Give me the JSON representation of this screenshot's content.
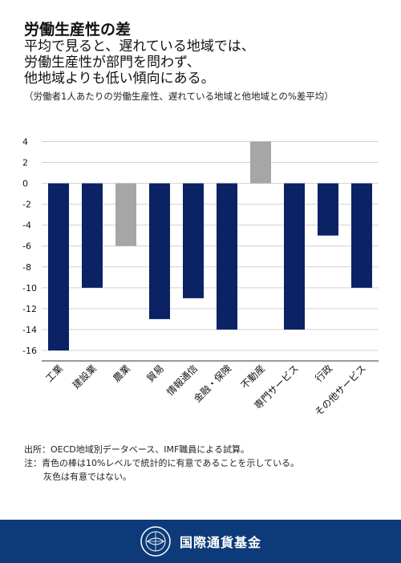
{
  "header": {
    "title": "労働生産性の差",
    "subtitle_lines": [
      "平均で見ると、遅れている地域では、",
      "労働生産性が部門を問わず、",
      "他地域よりも低い傾向にある。"
    ],
    "note": "（労働者1人あたりの労働生産性、遅れている地域と他地域との%差平均）"
  },
  "chart_data": {
    "type": "bar",
    "categories": [
      "工業",
      "建設業",
      "農業",
      "貿易",
      "情報通信",
      "金融・保険",
      "不動産",
      "専門サービス",
      "行政",
      "その他サービス"
    ],
    "values": [
      -16,
      -10,
      -6,
      -13,
      -11,
      -14,
      4,
      -14,
      -5,
      -10
    ],
    "significant": [
      true,
      true,
      false,
      true,
      true,
      true,
      false,
      true,
      true,
      true
    ],
    "ylim": [
      -17,
      4.5
    ],
    "yticks": [
      4,
      2,
      0,
      -2,
      -4,
      -6,
      -8,
      -10,
      -12,
      -14,
      -16
    ],
    "grid": true,
    "colors": {
      "significant": "#0b2265",
      "not_significant": "#a6a6a6",
      "grid": "#d0d0d0"
    }
  },
  "footnotes": {
    "source": "出所：OECD地域別データベース、IMF職員による試算。",
    "note1": "注：青色の棒は10%レベルで統計的に有意であることを示している。",
    "note2": "灰色は有意ではない。"
  },
  "footer": {
    "org_name": "国際通貨基金",
    "logo_icon": "imf-seal-icon",
    "background": "#0d3b7a"
  }
}
